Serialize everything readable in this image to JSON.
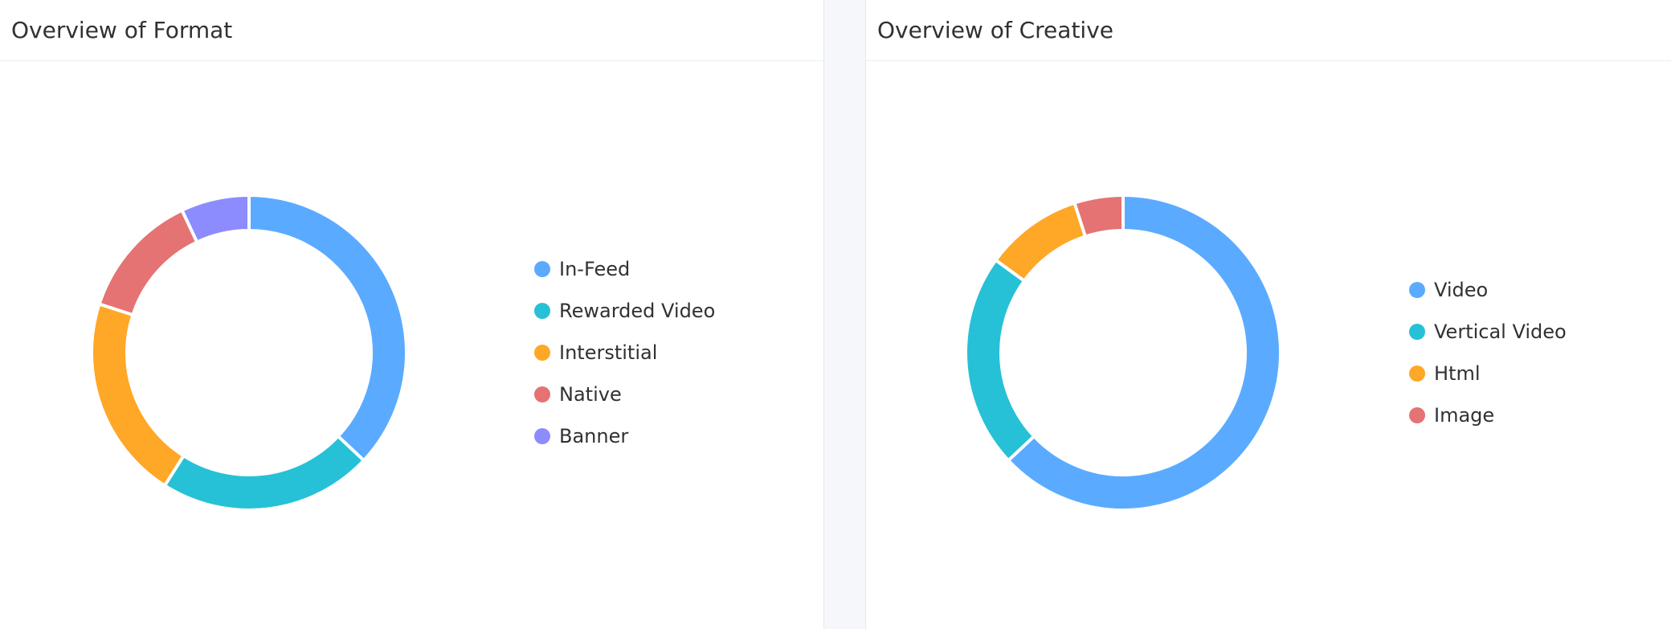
{
  "chart_data": [
    {
      "type": "pie",
      "title": "Overview of Format",
      "categories": [
        "In-Feed",
        "Rewarded Video",
        "Interstitial",
        "Native",
        "Banner"
      ],
      "values": [
        37,
        22,
        21,
        13,
        7
      ],
      "colors": [
        "#5aabff",
        "#26c1d6",
        "#ffa726",
        "#e57373",
        "#8c8cff"
      ],
      "legend": "right"
    },
    {
      "type": "pie",
      "title": "Overview of Creative",
      "categories": [
        "Video",
        "Vertical Video",
        "Html",
        "Image"
      ],
      "values": [
        63,
        22,
        10,
        5
      ],
      "colors": [
        "#5aabff",
        "#26c1d6",
        "#ffa726",
        "#e57373"
      ],
      "legend": "right"
    }
  ]
}
